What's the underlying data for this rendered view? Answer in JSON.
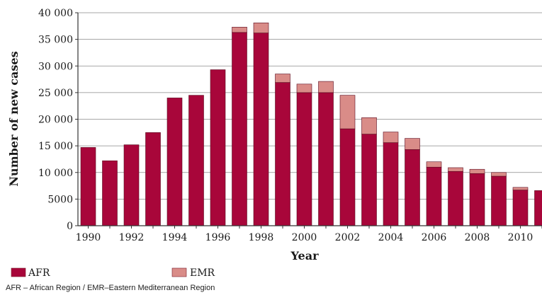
{
  "chart_data": {
    "type": "bar",
    "stacked": true,
    "xlabel": "Year",
    "ylabel": "Number of new cases",
    "ylim": [
      0,
      40000
    ],
    "yticks": [
      0,
      5000,
      10000,
      15000,
      20000,
      25000,
      30000,
      35000,
      40000
    ],
    "ytick_labels": [
      "0",
      "5000",
      "10 000",
      "15 000",
      "20 000",
      "25 000",
      "30 000",
      "35 000",
      "40 000"
    ],
    "xtick_labels": [
      "1990",
      "1992",
      "1994",
      "1996",
      "1998",
      "2000",
      "2002",
      "2004",
      "2006",
      "2008",
      "2010"
    ],
    "categories": [
      1990,
      1991,
      1992,
      1993,
      1994,
      1995,
      1996,
      1997,
      1998,
      1999,
      2000,
      2001,
      2002,
      2003,
      2004,
      2005,
      2006,
      2007,
      2008,
      2009,
      2010,
      2011
    ],
    "grid": "horizontal",
    "legend_position": "bottom-left",
    "series": [
      {
        "name": "AFR",
        "color": "#a8063a",
        "values": [
          14700,
          12200,
          15200,
          17500,
          24000,
          24500,
          29300,
          36300,
          36200,
          26900,
          25000,
          25000,
          18200,
          17200,
          15600,
          14300,
          11000,
          10200,
          9800,
          9300,
          6700,
          6600
        ]
      },
      {
        "name": "EMR",
        "color": "#d98c88",
        "values": [
          0,
          0,
          0,
          0,
          0,
          0,
          0,
          1000,
          1900,
          1600,
          1600,
          2100,
          6300,
          3100,
          2000,
          2100,
          1000,
          700,
          800,
          700,
          500,
          0
        ]
      }
    ]
  },
  "footnote": "AFR – African Region  /  EMR–Eastern Mediterranean Region"
}
